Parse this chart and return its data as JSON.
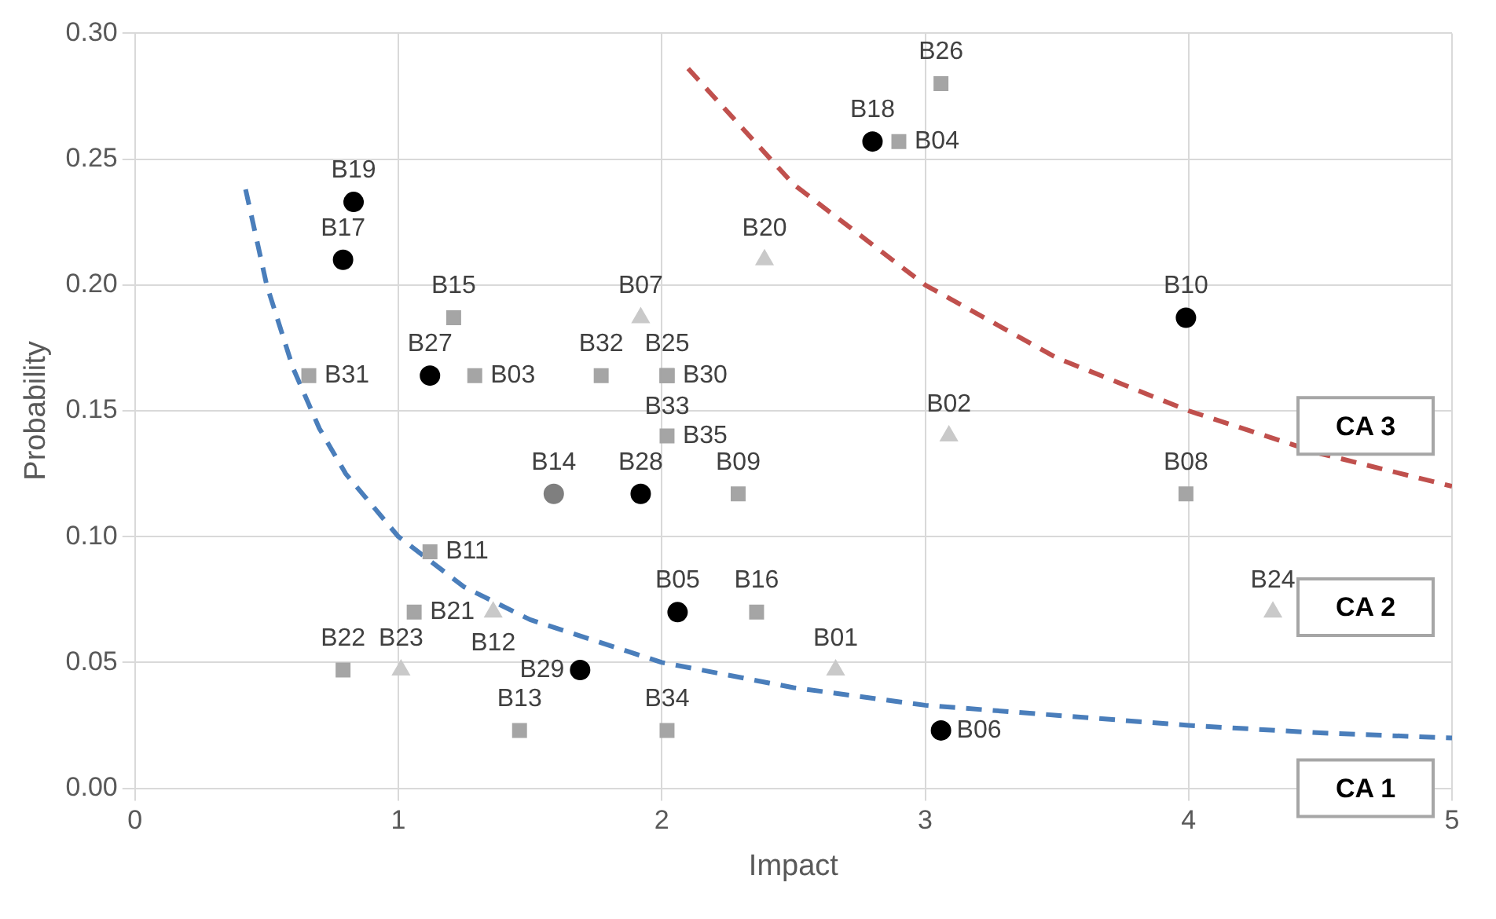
{
  "chart_data": {
    "type": "scatter",
    "xlabel": "Impact",
    "ylabel": "Probability",
    "xlim": [
      0,
      5
    ],
    "xticks": [
      0,
      1,
      2,
      3,
      4,
      5
    ],
    "ylim": [
      0,
      0.3
    ],
    "yticks": [
      {
        "value": 0,
        "label": "0.00"
      },
      {
        "value": 0.05,
        "label": "0.05"
      },
      {
        "value": 0.1,
        "label": "0.10"
      },
      {
        "value": 0.15,
        "label": "0.15"
      },
      {
        "value": 0.2,
        "label": "0.20"
      },
      {
        "value": 0.25,
        "label": "0.25"
      },
      {
        "value": 0.3,
        "label": "0.30"
      }
    ],
    "grid": true,
    "legend": false,
    "series": [
      {
        "marker": "circle",
        "color": "#000000",
        "x": [
          0.83,
          0.79,
          1.12,
          1.92,
          2.06,
          1.69,
          3.06,
          2.8,
          3.99
        ],
        "values": [
          0.233,
          0.21,
          0.164,
          0.117,
          0.07,
          0.047,
          0.023,
          0.257,
          0.187
        ],
        "value_labels": [
          "B19",
          "B17",
          "B27",
          "B28",
          "B05",
          "B29",
          "B06",
          "B18",
          "B10"
        ]
      },
      {
        "marker": "circle",
        "color": "#7f7f7f",
        "x": [
          1.59
        ],
        "values": [
          0.117
        ],
        "value_labels": [
          "B14"
        ]
      },
      {
        "marker": "square",
        "color": "#a5a5a5",
        "x": [
          3.06,
          2.9,
          1.21,
          0.66,
          1.29,
          1.77,
          2.02,
          2.02,
          2.02,
          2.02,
          2.29,
          3.99,
          1.12,
          1.06,
          2.36,
          0.79,
          1.46,
          2.02
        ],
        "values": [
          0.28,
          0.257,
          0.187,
          0.164,
          0.164,
          0.164,
          0.164,
          0.164,
          0.164,
          0.14,
          0.117,
          0.117,
          0.094,
          0.07,
          0.07,
          0.047,
          0.023,
          0.023
        ],
        "value_labels": [
          "B26",
          "B04",
          "B15",
          "B31",
          "B03",
          "B32",
          "B25",
          "B30",
          "B33",
          "B35",
          "B09",
          "B08",
          "B11",
          "B21",
          "B16",
          "B22",
          "B13",
          "B34"
        ]
      },
      {
        "marker": "triangle",
        "color": "#c9c9c9",
        "x": [
          2.39,
          1.92,
          3.09,
          1.36,
          1.01,
          2.66,
          4.32
        ],
        "values": [
          0.21,
          0.187,
          0.14,
          0.07,
          0.047,
          0.047,
          0.07
        ],
        "value_labels": [
          "B20",
          "B07",
          "B02",
          "B12",
          "B23",
          "B01",
          "B24"
        ]
      },
      {
        "type": "line",
        "marker": "none",
        "line_style": "dashed",
        "color": "#4a7ebb",
        "x": [
          0.42,
          0.5,
          0.6,
          0.7,
          0.8,
          1,
          1.25,
          1.5,
          2,
          2.5,
          3,
          3.5,
          4,
          4.5,
          5
        ],
        "values": [
          0.238,
          0.2,
          0.167,
          0.143,
          0.125,
          0.1,
          0.08,
          0.067,
          0.05,
          0.04,
          0.033,
          0.029,
          0.025,
          0.022,
          0.02
        ]
      },
      {
        "type": "line",
        "marker": "none",
        "line_style": "dashed",
        "color": "#c0504d",
        "x": [
          2.1,
          2.5,
          3,
          3.5,
          4,
          4.5,
          5
        ],
        "values": [
          0.286,
          0.24,
          0.2,
          0.171,
          0.15,
          0.133,
          0.12
        ]
      }
    ],
    "annotations": [
      "CA 3",
      "CA 2",
      "CA 1"
    ]
  }
}
